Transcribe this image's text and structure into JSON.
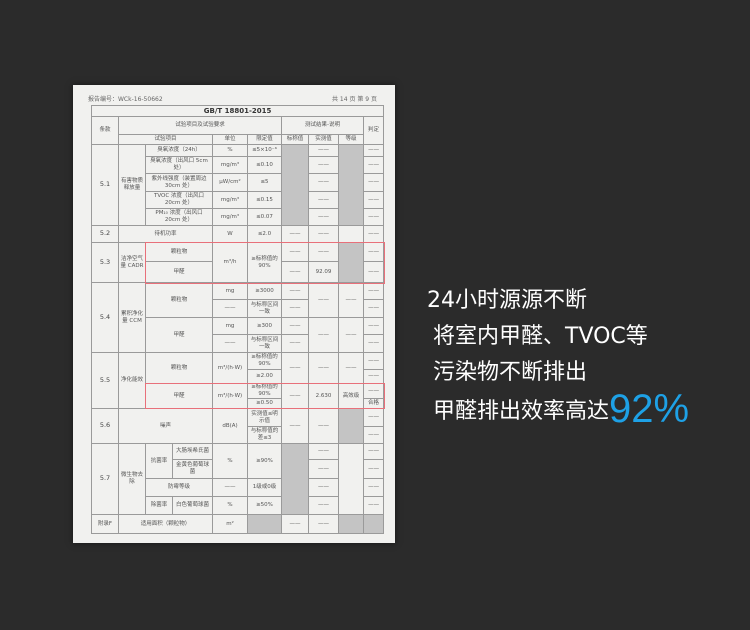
{
  "report": {
    "report_no": "报告编号：WCk-16-50662",
    "page": "共 14 页  第 9 页",
    "title": "GB/T 18801-2015",
    "headers": {
      "clause": "条款",
      "req": "试验项目及试验要求",
      "result": "测试结果-说明",
      "judge": "判定",
      "item": "试验项目",
      "unit": "单位",
      "limit": "限定值",
      "nominal": "标称值",
      "measured": "实测值",
      "grade": "等级"
    },
    "dash": "——",
    "s51": {
      "no": "5.1",
      "cat": "有害物质释放量",
      "items": [
        {
          "item": "臭氧浓度（24h）",
          "unit": "%",
          "limit": "≤5×10⁻⁶"
        },
        {
          "item": "臭氧浓度（出风口 5cm 处）",
          "unit": "mg/m³",
          "limit": "≤0.10"
        },
        {
          "item": "紫外线强度（装置周边 30cm 处）",
          "unit": "μW/cm²",
          "limit": "≤5"
        },
        {
          "item": "TVOC 浓度（出风口 20cm 处）",
          "unit": "mg/m³",
          "limit": "≤0.15"
        },
        {
          "item": "PM₁₀ 浓度（出风口 20cm 处）",
          "unit": "mg/m³",
          "limit": "≤0.07"
        }
      ]
    },
    "s52": {
      "no": "5.2",
      "item": "待机功率",
      "unit": "W",
      "limit": "≤2.0"
    },
    "s53": {
      "no": "5.3",
      "cat": "洁净空气量 CADR",
      "item1": "颗粒物",
      "item2": "甲醛",
      "unit": "m³/h",
      "limit": "≥标称值的 90%",
      "measured2": "92.09"
    },
    "s54": {
      "no": "5.4",
      "cat": "累积净化量 CCM",
      "item1": "颗粒物",
      "item2": "甲醛",
      "unit": "mg",
      "limit1": "≥3000",
      "limit2": "≥300",
      "range": "与标称区间一致"
    },
    "s55": {
      "no": "5.5",
      "cat": "净化能效",
      "item1": "颗粒物",
      "item2": "甲醛",
      "unit": "m³/(h·W)",
      "limit_pct": "≥标称值的 90%",
      "limit1": "≥2.00",
      "limit2": "≥0.50",
      "measured2": "2.630",
      "grade2": "高效级",
      "judge": "合格"
    },
    "s56": {
      "no": "5.6",
      "item": "噪声",
      "unit": "dB(A)",
      "limit1": "实测值≤明示值",
      "limit2": "与标称值的差≤3"
    },
    "s57": {
      "no": "5.7",
      "cat": "微生物去除",
      "antibac": "抗菌率",
      "ecoli": "大肠埃希氏菌",
      "saureus": "金黄色葡萄球菌",
      "unit": "%",
      "limit1": "≥90%",
      "mold": "防霉等级",
      "mold_limit": "1级或0级",
      "sterile": "除菌率",
      "salbus": "白色葡萄球菌",
      "limit3": "≥50%"
    },
    "appF": {
      "no": "附录F",
      "item": "适用面积（颗粒物）",
      "unit": "m²"
    }
  },
  "promo": {
    "line1": "24小时源源不断",
    "line2": "将室内甲醛、TVOC等",
    "line3": "污染物不断排出",
    "line4": "甲醛排出效率高达",
    "highlight": "92%",
    "highlight_color": "#1ea1e6"
  }
}
